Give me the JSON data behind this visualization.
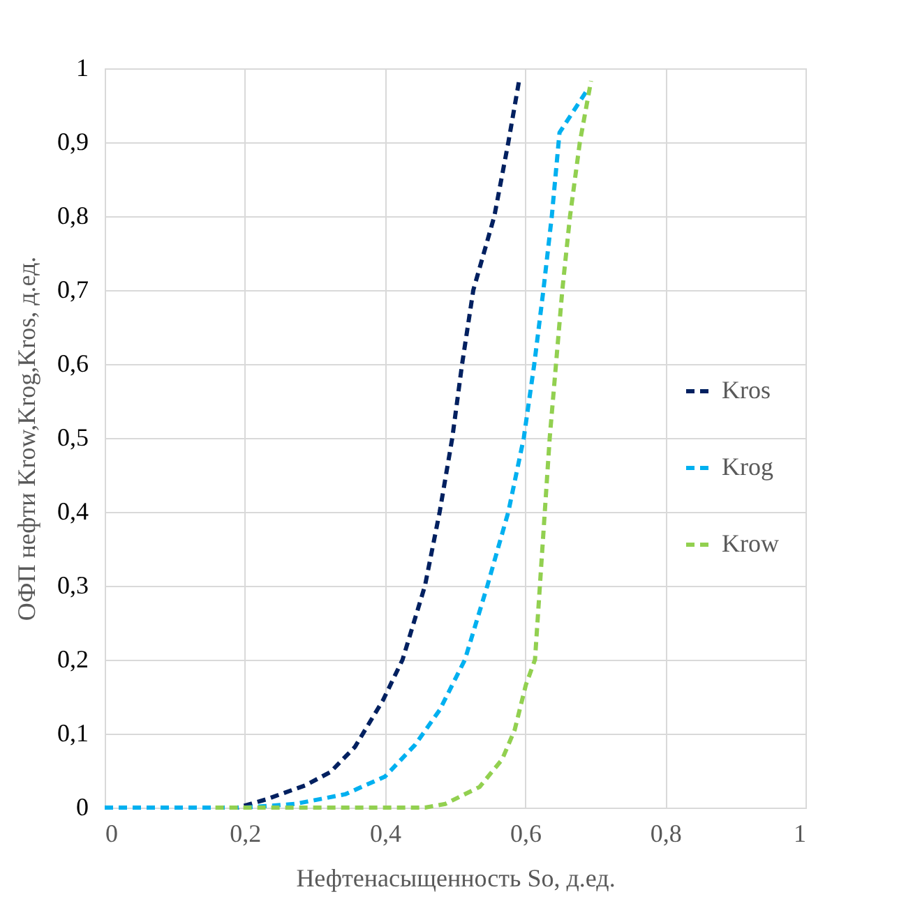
{
  "chart_data": {
    "type": "line",
    "xlabel": "Нефтенасыщенность So, д.ед.",
    "ylabel": "ОФП нефти Krow,Krog,Kros, д.ед.",
    "xlim": [
      0,
      1
    ],
    "ylim": [
      0,
      1
    ],
    "xticks": [
      0,
      {
        "value": 0.2,
        "label": "0,2"
      },
      {
        "value": 0.4,
        "label": "0,4"
      },
      {
        "value": 0.6,
        "label": "0,6"
      },
      {
        "value": 0.8,
        "label": "0,8"
      },
      1
    ],
    "yticks": [
      0,
      {
        "value": 0.1,
        "label": "0,1"
      },
      {
        "value": 0.2,
        "label": "0,2"
      },
      {
        "value": 0.3,
        "label": "0,3"
      },
      {
        "value": 0.4,
        "label": "0,4"
      },
      {
        "value": 0.5,
        "label": "0,5"
      },
      {
        "value": 0.6,
        "label": "0,6"
      },
      {
        "value": 0.7,
        "label": "0,7"
      },
      {
        "value": 0.8,
        "label": "0,8"
      },
      {
        "value": 0.9,
        "label": "0,9"
      },
      1
    ],
    "grid": true,
    "legend": "right",
    "line_style": "dashed",
    "marker": "none",
    "series": [
      {
        "name": "Kros",
        "color": "#002060",
        "x": [
          0,
          0.19,
          0.23,
          0.286,
          0.322,
          0.357,
          0.397,
          0.425,
          0.457,
          0.478,
          0.496,
          0.51,
          0.526,
          0.556,
          0.576,
          0.592
        ],
        "values": [
          0,
          0,
          0.011,
          0.03,
          0.048,
          0.082,
          0.145,
          0.2,
          0.3,
          0.4,
          0.5,
          0.6,
          0.7,
          0.8,
          0.9,
          0.987
        ]
      },
      {
        "name": "Krog",
        "color": "#00b0f0",
        "x": [
          0,
          0.2,
          0.272,
          0.343,
          0.4,
          0.443,
          0.478,
          0.514,
          0.546,
          0.576,
          0.598,
          0.613,
          0.626,
          0.638,
          0.649,
          0.688
        ],
        "values": [
          0,
          0,
          0.005,
          0.018,
          0.042,
          0.085,
          0.132,
          0.2,
          0.3,
          0.4,
          0.5,
          0.6,
          0.7,
          0.8,
          0.913,
          0.97
        ]
      },
      {
        "name": "Krow",
        "color": "#92d050",
        "x": [
          0.158,
          0.457,
          0.486,
          0.535,
          0.567,
          0.585,
          0.601,
          0.614,
          0.621,
          0.628,
          0.635,
          0.644,
          0.653,
          0.664,
          0.678,
          0.694
        ],
        "values": [
          0,
          0,
          0.005,
          0.028,
          0.065,
          0.105,
          0.166,
          0.2,
          0.3,
          0.4,
          0.5,
          0.6,
          0.7,
          0.8,
          0.9,
          0.983
        ]
      }
    ]
  }
}
